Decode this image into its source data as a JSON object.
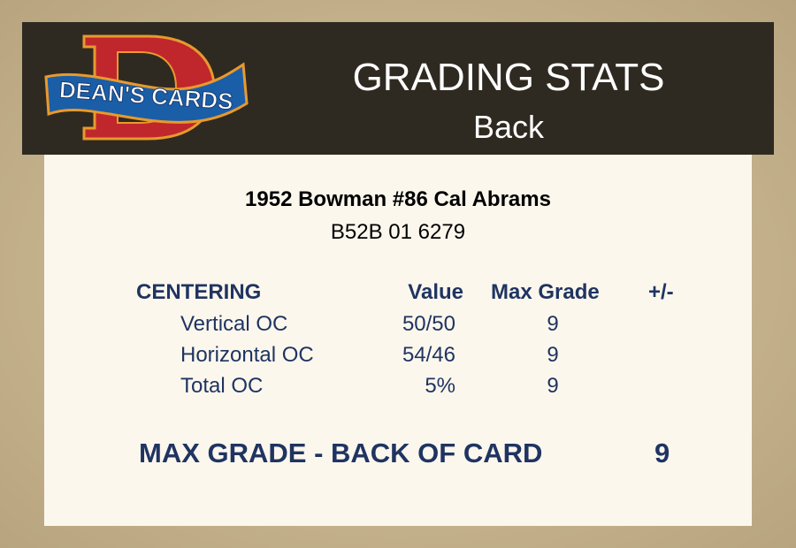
{
  "header": {
    "logo_text": "DEAN'S CARDS",
    "title": "GRADING STATS",
    "subtitle": "Back"
  },
  "card": {
    "name": "1952 Bowman #86 Cal Abrams",
    "id": "B52B 01 6279"
  },
  "table": {
    "headers": {
      "section": "CENTERING",
      "value": "Value",
      "max_grade": "Max Grade",
      "plus_minus": "+/-"
    },
    "rows": [
      {
        "label": "Vertical OC",
        "value": "50/50",
        "max_grade": "9"
      },
      {
        "label": "Horizontal OC",
        "value": "54/46",
        "max_grade": "9"
      },
      {
        "label": "Total OC",
        "value": "5%",
        "max_grade": "9"
      }
    ]
  },
  "summary": {
    "label": "MAX GRADE - BACK OF CARD",
    "value": "9"
  },
  "colors": {
    "header_bg": "#2f2a21",
    "panel_bg": "#fcf7ed",
    "text_navy": "#1f3461"
  }
}
